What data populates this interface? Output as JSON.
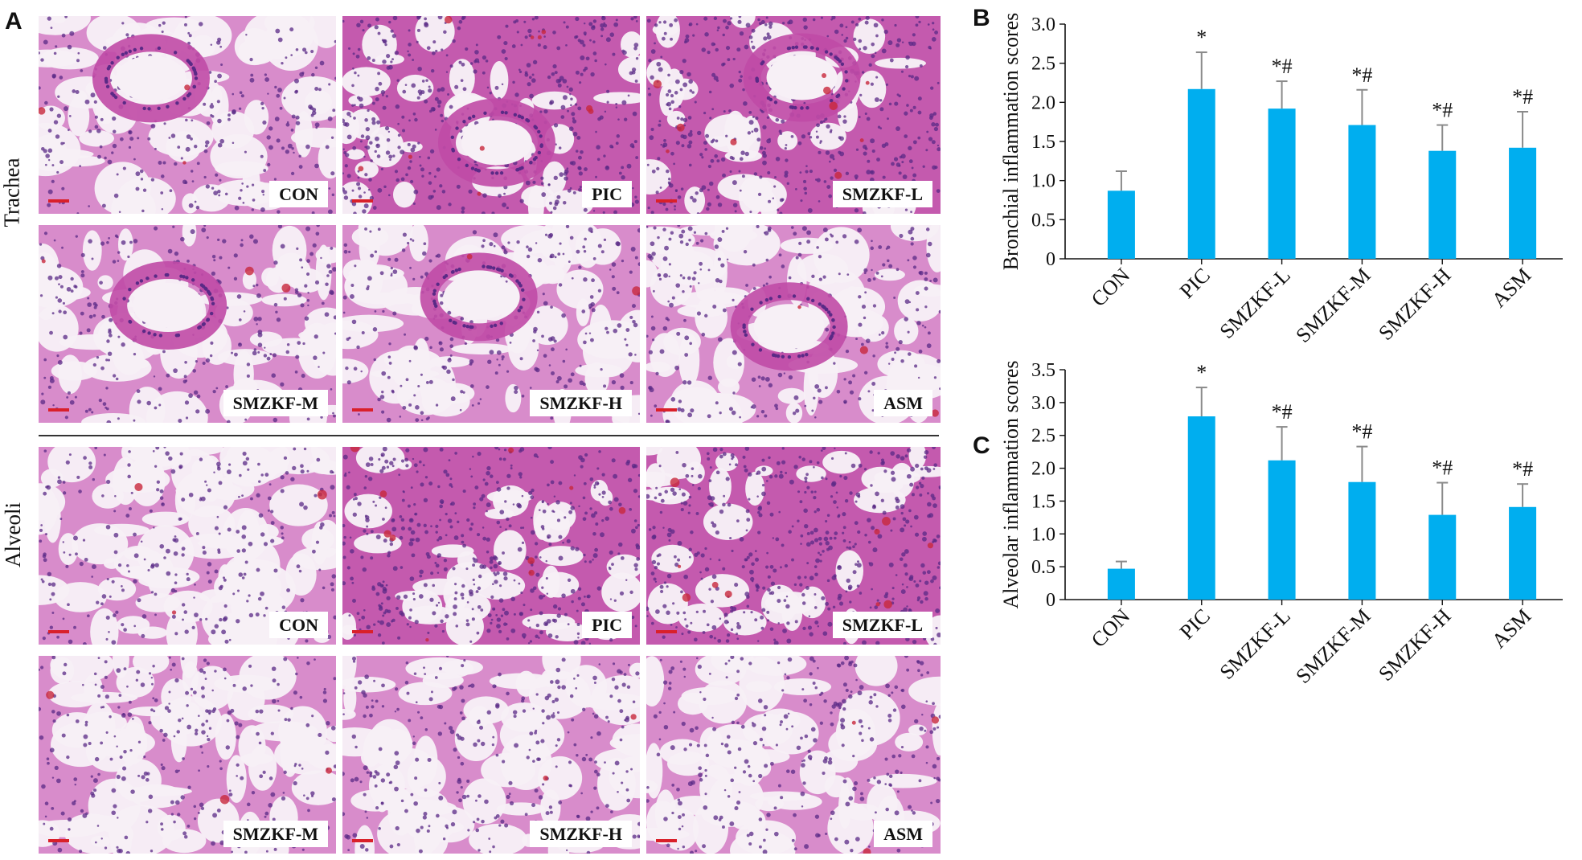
{
  "panel_a": {
    "letter": "A",
    "rows": [
      {
        "label": "Trachea",
        "tiles": [
          "CON",
          "PIC",
          "SMZKF-L",
          "SMZKF-M",
          "SMZKF-H",
          "ASM"
        ]
      },
      {
        "label": "Alveoli",
        "tiles": [
          "CON",
          "PIC",
          "SMZKF-L",
          "SMZKF-M",
          "SMZKF-H",
          "ASM"
        ]
      }
    ],
    "stain_colors": {
      "background": "#f7f0f6",
      "tissue": "#c04aa6",
      "nuclei": "#5a2a86",
      "blood": "#c8283c",
      "scale_bar": "#d9202a"
    }
  },
  "chart_data": [
    {
      "letter": "B",
      "type": "bar",
      "ylabel": "Bronchial inflammation scores",
      "categories": [
        "CON",
        "PIC",
        "SMZKF-L",
        "SMZKF-M",
        "SMZKF-H",
        "ASM"
      ],
      "values": [
        0.87,
        2.17,
        1.92,
        1.71,
        1.38,
        1.42
      ],
      "errors": [
        0.25,
        0.47,
        0.35,
        0.45,
        0.33,
        0.46
      ],
      "annotations": [
        "",
        "*",
        "*#",
        "*#",
        "*#",
        "*#"
      ],
      "ylim": [
        0,
        3.0
      ],
      "ticks": [
        "0",
        "0.5",
        "1.0",
        "1.5",
        "2.0",
        "2.5",
        "3.0"
      ],
      "bar_color": "#00aeef",
      "error_color": "#8a8a8a"
    },
    {
      "letter": "C",
      "type": "bar",
      "ylabel": "Alveolar inflammation scores",
      "categories": [
        "CON",
        "PIC",
        "SMZKF-L",
        "SMZKF-M",
        "SMZKF-H",
        "ASM"
      ],
      "values": [
        0.47,
        2.79,
        2.12,
        1.79,
        1.29,
        1.41
      ],
      "errors": [
        0.11,
        0.44,
        0.51,
        0.54,
        0.49,
        0.35
      ],
      "annotations": [
        "",
        "*",
        "*#",
        "*#",
        "*#",
        "*#"
      ],
      "ylim": [
        0,
        3.5
      ],
      "ticks": [
        "0",
        "0.5",
        "1.0",
        "1.5",
        "2.0",
        "2.5",
        "3.0",
        "3.5"
      ],
      "bar_color": "#00aeef",
      "error_color": "#8a8a8a"
    }
  ]
}
